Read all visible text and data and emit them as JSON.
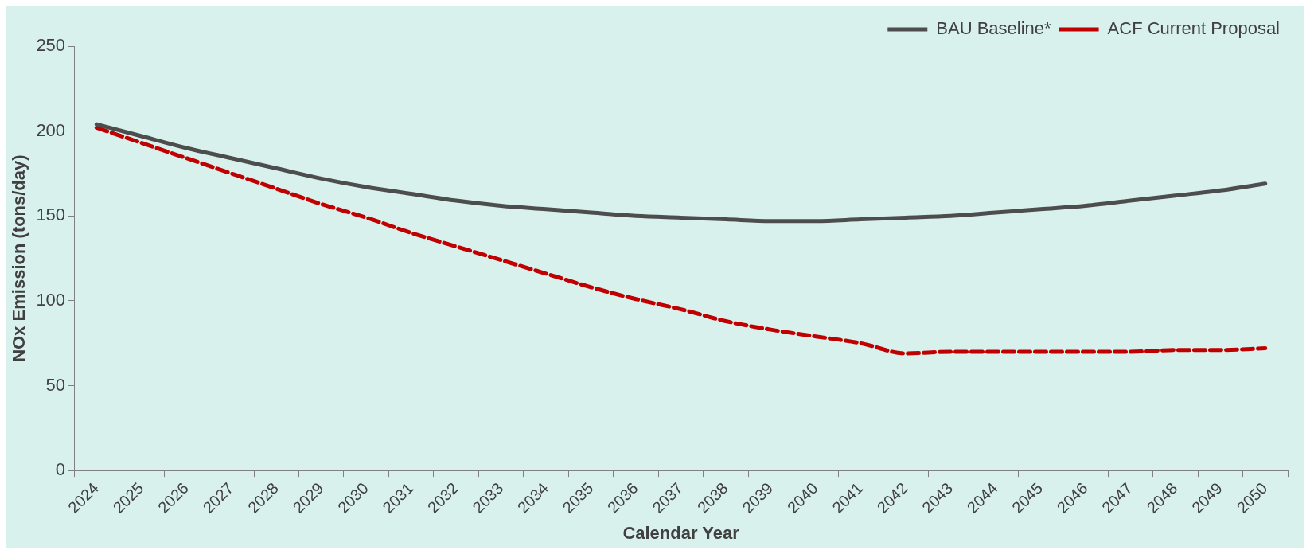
{
  "chart_data": {
    "type": "line",
    "xlabel": "Calendar Year",
    "ylabel": "NOx Emission (tons/day)",
    "categories": [
      "2024",
      "2025",
      "2026",
      "2027",
      "2028",
      "2029",
      "2030",
      "2031",
      "2032",
      "2033",
      "2034",
      "2035",
      "2036",
      "2037",
      "2038",
      "2039",
      "2040",
      "2041",
      "2042",
      "2043",
      "2044",
      "2045",
      "2046",
      "2047",
      "2048",
      "2049",
      "2050"
    ],
    "series": [
      {
        "name": "BAU Baseline*",
        "color": "#4d4d4d",
        "line_style": "solid",
        "values": [
          204,
          197,
          190,
          184,
          178,
          172,
          167,
          163,
          159,
          156,
          154,
          152,
          150,
          149,
          148,
          147,
          147,
          148,
          149,
          150,
          152,
          154,
          156,
          159,
          162,
          165,
          169
        ]
      },
      {
        "name": "ACF Current Proposal",
        "color": "#c00000",
        "line_style": "dashed",
        "values": [
          202,
          193,
          184,
          175,
          166,
          157,
          149,
          140,
          132,
          124,
          116,
          108,
          101,
          95,
          88,
          83,
          79,
          75,
          69,
          70,
          70,
          70,
          70,
          70,
          71,
          71,
          72
        ]
      }
    ],
    "ylim": [
      0,
      250
    ],
    "yticks": [
      0,
      50,
      100,
      150,
      200,
      250
    ],
    "grid": false,
    "legend": "top right",
    "marker": "none"
  }
}
